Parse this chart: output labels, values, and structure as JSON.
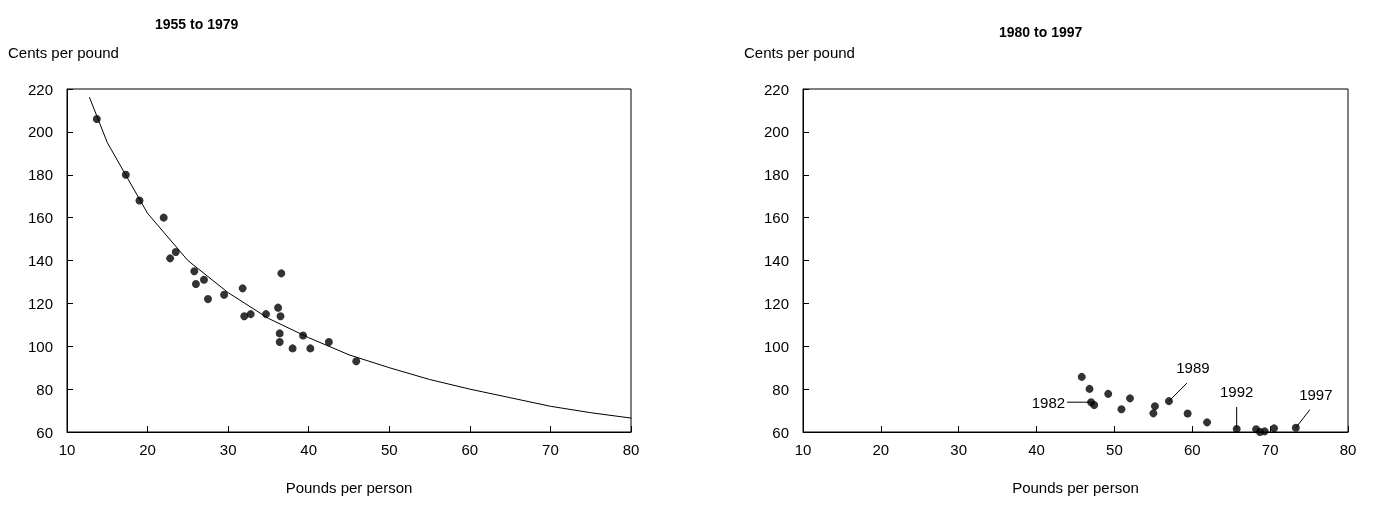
{
  "chart_data": [
    {
      "type": "scatter",
      "title": "1955 to 1979",
      "xlabel": "Pounds per person",
      "ylabel": "Cents per pound",
      "marker": "circle",
      "xlim": [
        10,
        80
      ],
      "ylim": [
        60,
        220
      ],
      "xticks": [
        10,
        20,
        30,
        40,
        50,
        60,
        70,
        80
      ],
      "yticks": [
        60,
        80,
        100,
        120,
        140,
        160,
        180,
        200,
        220
      ],
      "grid": false,
      "series": [
        {
          "color": "#000000",
          "x": [
            13.7,
            17.3,
            19,
            22,
            22.8,
            23.5,
            25.8,
            26,
            27,
            27.5,
            29.5,
            31.8,
            32.0,
            32.8,
            34.7,
            36.2,
            36.4,
            36.4,
            36.5,
            36.6,
            38,
            39.3,
            40.2,
            42.5,
            45.9
          ],
          "values": [
            206,
            180,
            168,
            160,
            141,
            144,
            135,
            129,
            131,
            122,
            124,
            127,
            114,
            115,
            115,
            118,
            106,
            102,
            114,
            134,
            99,
            105,
            99,
            102,
            93
          ]
        },
        {
          "type": "line",
          "marker": "none",
          "line_style": "solid",
          "color": "#000000",
          "x": [
            12.8,
            15,
            20,
            25,
            30,
            35,
            40,
            45,
            50,
            55,
            60,
            65,
            70,
            75,
            80
          ],
          "values": [
            216,
            195,
            162,
            140,
            125,
            113,
            104,
            96,
            90,
            84.5,
            80,
            76,
            72,
            69,
            66.5
          ]
        }
      ]
    },
    {
      "type": "scatter",
      "title": "1980 to 1997",
      "xlabel": "Pounds per person",
      "ylabel": "Cents per pound",
      "marker": "circle",
      "xlim": [
        10,
        80
      ],
      "ylim": [
        60,
        220
      ],
      "xticks": [
        10,
        20,
        30,
        40,
        50,
        60,
        70,
        80
      ],
      "yticks": [
        60,
        80,
        100,
        120,
        140,
        160,
        180,
        200,
        220
      ],
      "grid": false,
      "series": [
        {
          "color": "#000000",
          "x": [
            45.8,
            46.8,
            47.0,
            47.4,
            49.2,
            50.9,
            52.0,
            55.0,
            55.2,
            57.0,
            59.4,
            61.9,
            65.7,
            68.2,
            68.7,
            69.3,
            70.5,
            73.3
          ],
          "values": [
            85.7,
            80.1,
            73.9,
            72.6,
            77.8,
            70.6,
            75.7,
            68.7,
            72.0,
            74.4,
            68.6,
            64.5,
            61.4,
            61.3,
            60.0,
            60.3,
            61.7,
            62.0
          ]
        }
      ],
      "annotations": [
        {
          "text": "1982",
          "x": 47.0,
          "y": 73.9
        },
        {
          "text": "1989",
          "x": 57.0,
          "y": 74.4
        },
        {
          "text": "1992",
          "x": 65.7,
          "y": 61.4
        },
        {
          "text": "1997",
          "x": 73.3,
          "y": 62.0
        }
      ]
    }
  ]
}
